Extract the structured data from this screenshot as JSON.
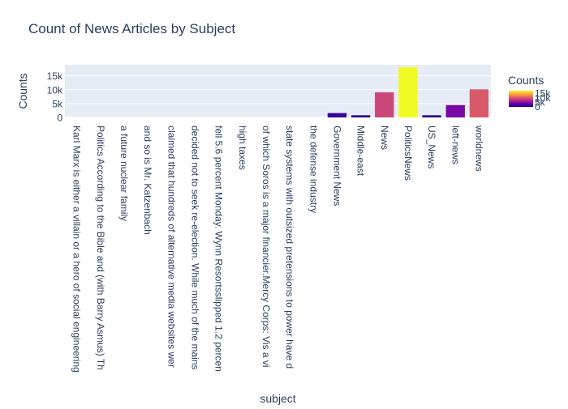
{
  "chart_data": {
    "type": "bar",
    "title": "Count of News Articles by Subject",
    "xlabel": "subject",
    "ylabel": "Counts",
    "ylim": [
      0,
      19000
    ],
    "yticks": [
      0,
      5000,
      10000,
      15000
    ],
    "ytick_labels": [
      "0",
      "5k",
      "10k",
      "15k"
    ],
    "grid": true,
    "categories": [
      "Karl Marx is either a villain or a hero of social engineering",
      "Politics According to the Bible and (with Barry Asmus) Th",
      "a future nuclear family",
      "and so is Mr. Katzenbach",
      "claimed that hundreds of alternative media websites wer",
      "decided not to seek re-election. While much of the mains",
      "fell 5.6 percent Monday. Wynn Resortsslipped 1.2 percen",
      "high taxes",
      "of which Soros is a major financier.Mercy Corps: Vis a vi",
      "state systems with outsized pretensions to power have d",
      "the defense industry",
      "Government News",
      "Middle-east",
      "News",
      "PoliticsNews",
      "US_News",
      "left-news",
      "worldnews"
    ],
    "values": [
      1,
      1,
      1,
      1,
      1,
      1,
      1,
      1,
      1,
      1,
      1,
      1570,
      778,
      9050,
      18113,
      783,
      4459,
      10145
    ],
    "colorbar": {
      "title": "Counts",
      "tick_labels": [
        "0",
        "5k",
        "10k",
        "15k"
      ],
      "tick_values": [
        0,
        5000,
        10000,
        15000
      ],
      "range": [
        0,
        18113
      ],
      "colorscale": [
        "#0d0887",
        "#46039f",
        "#7201a8",
        "#9c179e",
        "#bd3786",
        "#d8576b",
        "#ed7953",
        "#fb9f3a",
        "#fdca26",
        "#f0f921"
      ]
    },
    "colors": {
      "plot_bg": "#e5ecf6",
      "grid": "#ffffff",
      "text": "#2a3f5f"
    }
  }
}
